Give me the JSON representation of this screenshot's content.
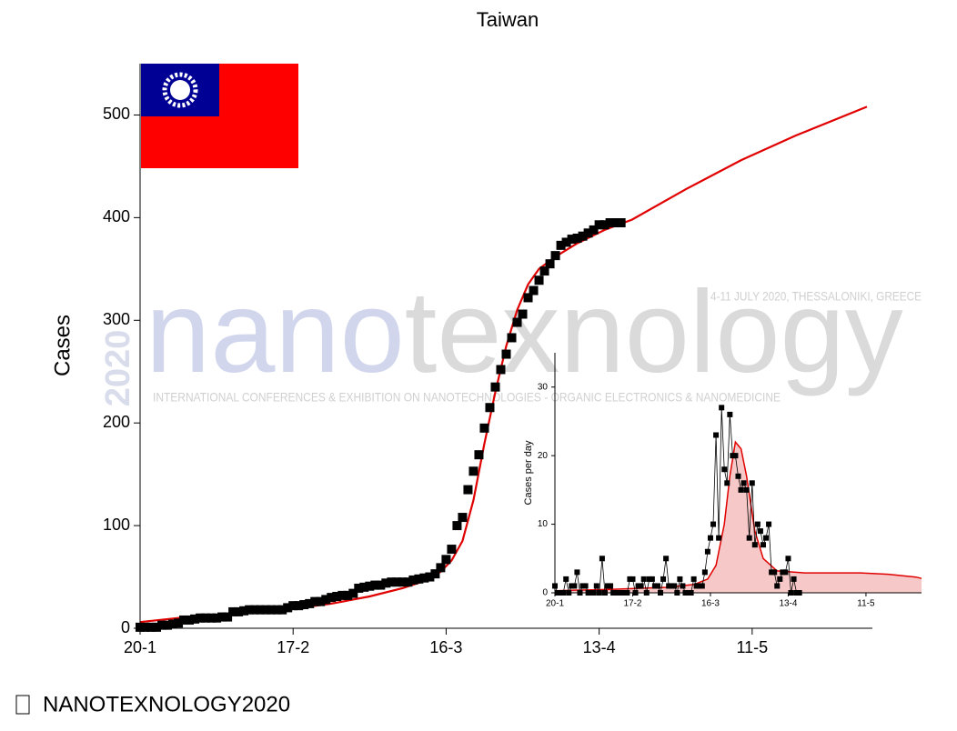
{
  "chart_data": [
    {
      "type": "scatter",
      "title": "Taiwan",
      "y_label": "Cases",
      "x": [
        0,
        1,
        2,
        3,
        4,
        5,
        6,
        7,
        8,
        9,
        10,
        11,
        12,
        13,
        14,
        15,
        16,
        17,
        18,
        19,
        20,
        21,
        22,
        23,
        24,
        25,
        26,
        27,
        28,
        29,
        30,
        31,
        32,
        33,
        34,
        35,
        36,
        37,
        38,
        39,
        40,
        41,
        42,
        43,
        44,
        45,
        46,
        47,
        48,
        49,
        50,
        51,
        52,
        53,
        54,
        55,
        56,
        57,
        58,
        59,
        60,
        61,
        62,
        63,
        64,
        65,
        66,
        67,
        68,
        69,
        70,
        71,
        72,
        73,
        74,
        75,
        76,
        77,
        78,
        79,
        80,
        81,
        82,
        83,
        84,
        85,
        86,
        87,
        88
      ],
      "values": [
        1,
        1,
        1,
        1,
        3,
        3,
        4,
        5,
        8,
        8,
        9,
        10,
        10,
        10,
        10,
        11,
        11,
        16,
        16,
        17,
        18,
        18,
        18,
        18,
        18,
        18,
        18,
        20,
        22,
        22,
        23,
        24,
        26,
        26,
        28,
        30,
        31,
        32,
        32,
        34,
        39,
        40,
        41,
        42,
        42,
        44,
        45,
        45,
        45,
        45,
        47,
        48,
        49,
        50,
        53,
        59,
        67,
        77,
        100,
        108,
        135,
        153,
        169,
        195,
        215,
        235,
        252,
        267,
        283,
        298,
        306,
        322,
        329,
        339,
        348,
        355,
        363,
        373,
        376,
        379,
        380,
        382,
        385,
        388,
        393,
        393,
        395,
        395,
        395
      ],
      "color": "#000000",
      "fit": {
        "x": [
          0,
          7,
          14,
          21,
          28,
          35,
          42,
          48,
          52,
          55,
          57,
          59,
          61,
          63,
          65,
          67,
          69,
          71,
          73,
          76,
          80,
          85,
          90,
          100,
          110,
          120,
          133
        ],
        "values": [
          6,
          10,
          13,
          16,
          19,
          24,
          31,
          39,
          46,
          55,
          66,
          85,
          125,
          180,
          230,
          275,
          310,
          335,
          350,
          362,
          375,
          388,
          398,
          428,
          456,
          480,
          508
        ],
        "color": "#e00000"
      },
      "xlim": [
        0,
        134
      ],
      "ylim": [
        0,
        550
      ],
      "xticks": [
        {
          "value": 0,
          "label": "20-1"
        },
        {
          "value": 28,
          "label": "17-2"
        },
        {
          "value": 56,
          "label": "16-3"
        },
        {
          "value": 84,
          "label": "13-4"
        },
        {
          "value": 112,
          "label": "11-5"
        }
      ],
      "yticks": [
        0,
        100,
        200,
        300,
        400,
        500
      ]
    },
    {
      "type": "scatter",
      "y_label": "Cases per day",
      "connect": true,
      "x": [
        0,
        1,
        2,
        3,
        4,
        5,
        6,
        7,
        8,
        9,
        10,
        11,
        12,
        13,
        14,
        15,
        16,
        17,
        18,
        19,
        20,
        21,
        22,
        23,
        24,
        25,
        26,
        27,
        28,
        29,
        30,
        31,
        32,
        33,
        34,
        35,
        36,
        37,
        38,
        39,
        40,
        41,
        42,
        43,
        44,
        45,
        46,
        47,
        48,
        49,
        50,
        51,
        52,
        53,
        54,
        55,
        56,
        57,
        58,
        59,
        60,
        61,
        62,
        63,
        64,
        65,
        66,
        67,
        68,
        69,
        70,
        71,
        72,
        73,
        74,
        75,
        76,
        77,
        78,
        79,
        80,
        81,
        82,
        83,
        84,
        85,
        86,
        87,
        88
      ],
      "values": [
        1,
        0,
        0,
        0,
        2,
        0,
        1,
        1,
        3,
        0,
        1,
        1,
        0,
        0,
        0,
        1,
        0,
        5,
        0,
        1,
        1,
        0,
        0,
        0,
        0,
        0,
        0,
        2,
        2,
        0,
        1,
        1,
        2,
        0,
        2,
        2,
        1,
        1,
        0,
        2,
        5,
        1,
        1,
        1,
        0,
        2,
        1,
        0,
        0,
        0,
        2,
        1,
        1,
        1,
        3,
        6,
        8,
        10,
        23,
        8,
        27,
        18,
        16,
        26,
        20,
        20,
        17,
        15,
        16,
        15,
        8,
        16,
        7,
        10,
        9,
        7,
        8,
        10,
        3,
        3,
        1,
        2,
        3,
        3,
        5,
        0,
        2,
        0,
        0
      ],
      "color": "#000000",
      "fit": {
        "x": [
          0,
          20,
          40,
          50,
          55,
          58,
          61,
          63,
          65,
          67,
          69,
          72,
          75,
          80,
          90,
          100,
          110,
          120,
          130,
          132
        ],
        "values": [
          0.3,
          0.5,
          0.8,
          1.2,
          2,
          4,
          10,
          17,
          22,
          21,
          17,
          9,
          5,
          3.2,
          2.9,
          2.9,
          2.9,
          2.7,
          2.3,
          2.1
        ],
        "color": "#e00000",
        "fill": "#f6c8c8"
      },
      "xlim": [
        0,
        132
      ],
      "ylim": [
        0,
        35
      ],
      "xticks": [
        {
          "value": 0,
          "label": "20-1"
        },
        {
          "value": 28,
          "label": "17-2"
        },
        {
          "value": 56,
          "label": "16-3"
        },
        {
          "value": 84,
          "label": "13-4"
        },
        {
          "value": 112,
          "label": "11-5"
        }
      ],
      "yticks": [
        0,
        10,
        20,
        30
      ]
    }
  ],
  "watermark": {
    "logo": [
      "nano",
      "texnology"
    ],
    "year": "2020",
    "dates": "4-11 JULY 2020, THESSALONIKI, GREECE",
    "tagline": "INTERNATIONAL CONFERENCES & EXHIBITION ON NANOTECHNOLOGIES - ORGANIC ELECTRONICS & NANOMEDICINE"
  },
  "footer": "NANOTEXNOLOGY2020"
}
